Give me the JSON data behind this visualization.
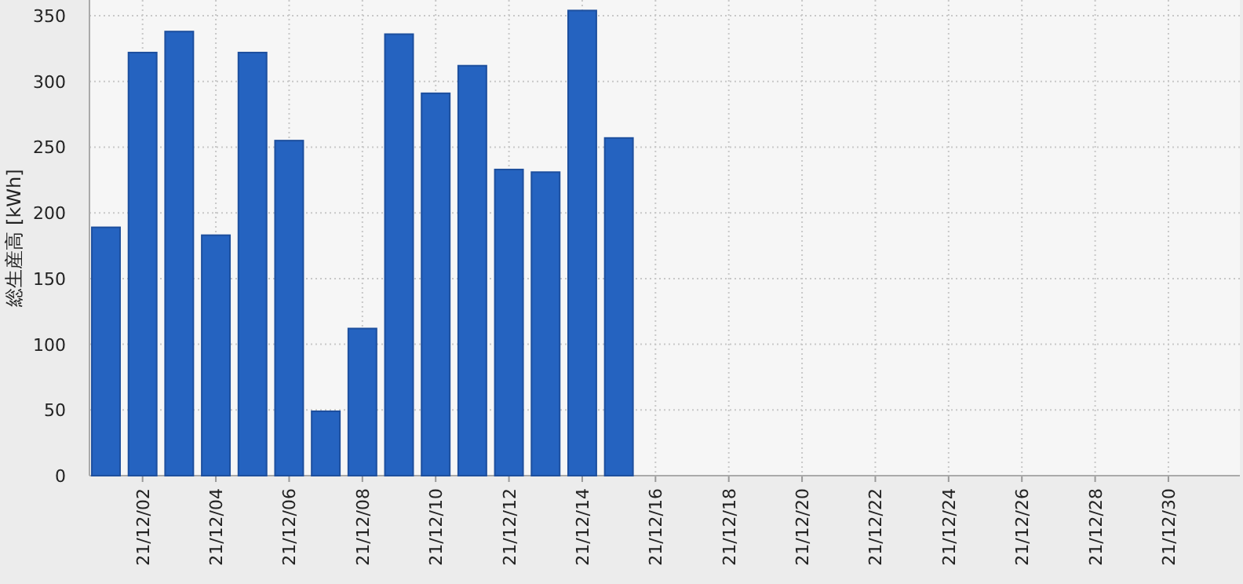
{
  "chart_data": {
    "type": "bar",
    "ylabel": "総生産高 [kWh]",
    "categories": [
      null,
      "21/12/02",
      null,
      "21/12/04",
      null,
      "21/12/06",
      null,
      "21/12/08",
      null,
      "21/12/10",
      null,
      "21/12/12",
      null,
      "21/12/14",
      null,
      "21/12/16",
      null,
      "21/12/18",
      null,
      "21/12/20",
      null,
      "21/12/22",
      null,
      "21/12/24",
      null,
      "21/12/26",
      null,
      "21/12/28",
      null,
      "21/12/30",
      null
    ],
    "values": [
      189,
      322,
      338,
      183,
      322,
      255,
      49,
      112,
      336,
      291,
      312,
      233,
      231,
      354,
      257,
      null,
      null,
      null,
      null,
      null,
      null,
      null,
      null,
      null,
      null,
      null,
      null,
      null,
      null,
      null,
      null
    ],
    "color": "#2563c0",
    "ylim": [
      0,
      362
    ],
    "yticks": [
      0,
      50,
      100,
      150,
      200,
      250,
      300,
      350
    ],
    "grid": true
  }
}
